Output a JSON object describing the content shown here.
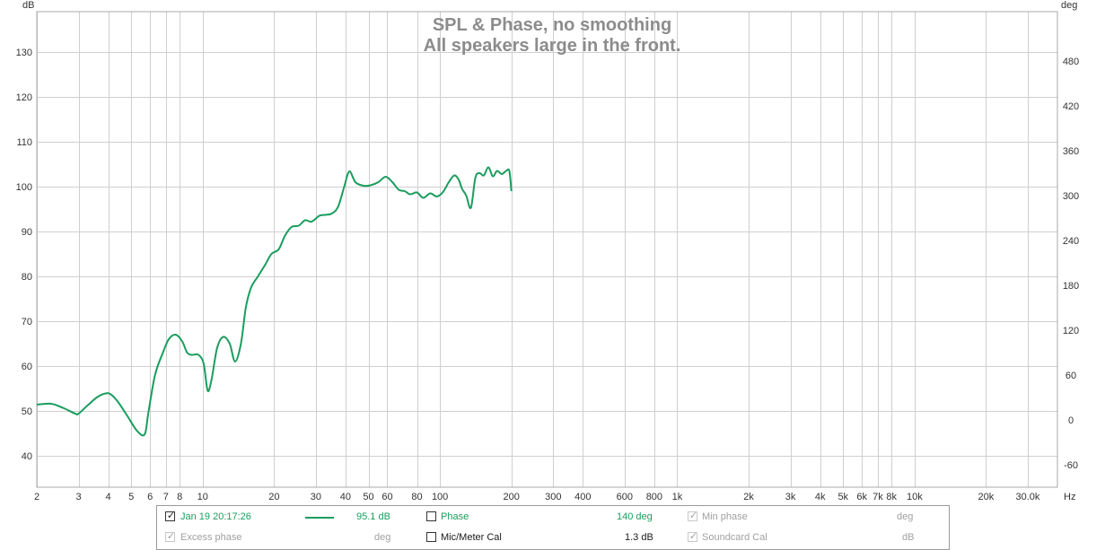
{
  "chart_data": {
    "type": "line",
    "title": "SPL & Phase, no smoothing",
    "subtitle": "All speakers large in the front.",
    "xlabel": "Hz",
    "ylabel": "dB",
    "y2label": "deg",
    "xscale": "log",
    "xlim": [
      2,
      40000
    ],
    "ylim": [
      33,
      139
    ],
    "y2lim": [
      -90,
      546
    ],
    "grid": true,
    "x_ticks": [
      {
        "v": 2,
        "t": "2"
      },
      {
        "v": 3,
        "t": "3"
      },
      {
        "v": 4,
        "t": "4"
      },
      {
        "v": 5,
        "t": "5"
      },
      {
        "v": 6,
        "t": "6"
      },
      {
        "v": 7,
        "t": "7"
      },
      {
        "v": 8,
        "t": "8"
      },
      {
        "v": 10,
        "t": "10"
      },
      {
        "v": 20,
        "t": "20"
      },
      {
        "v": 30,
        "t": "30"
      },
      {
        "v": 40,
        "t": "40"
      },
      {
        "v": 50,
        "t": "50"
      },
      {
        "v": 60,
        "t": "60"
      },
      {
        "v": 80,
        "t": "80"
      },
      {
        "v": 100,
        "t": "100"
      },
      {
        "v": 200,
        "t": "200"
      },
      {
        "v": 300,
        "t": "300"
      },
      {
        "v": 400,
        "t": "400"
      },
      {
        "v": 600,
        "t": "600"
      },
      {
        "v": 800,
        "t": "800"
      },
      {
        "v": 1000,
        "t": "1k"
      },
      {
        "v": 2000,
        "t": "2k"
      },
      {
        "v": 3000,
        "t": "3k"
      },
      {
        "v": 4000,
        "t": "4k"
      },
      {
        "v": 5000,
        "t": "5k"
      },
      {
        "v": 6000,
        "t": "6k"
      },
      {
        "v": 7000,
        "t": "7k"
      },
      {
        "v": 8000,
        "t": "8k"
      },
      {
        "v": 10000,
        "t": "10k"
      },
      {
        "v": 20000,
        "t": "20k"
      },
      {
        "v": 30000,
        "t": "30.0k"
      }
    ],
    "y_ticks": [
      40,
      50,
      60,
      70,
      80,
      90,
      100,
      110,
      120,
      130
    ],
    "y2_ticks": [
      -60,
      0,
      60,
      120,
      180,
      240,
      300,
      360,
      420,
      480
    ],
    "series": [
      {
        "color": "#1a9d5e",
        "x": [
          2.0,
          2.3,
          2.6,
          2.9,
          3.0,
          3.3,
          3.6,
          3.9,
          4.1,
          4.4,
          4.8,
          5.3,
          5.7,
          5.9,
          6.3,
          6.8,
          7.2,
          7.7,
          8.2,
          8.6,
          9.0,
          9.6,
          10.1,
          10.5,
          10.9,
          11.5,
          12.2,
          13.0,
          13.7,
          14.5,
          15.2,
          16.0,
          17.1,
          18.3,
          19.5,
          20.9,
          22.2,
          23.7,
          25.4,
          27.0,
          28.8,
          31.0,
          32.8,
          35.0,
          37.2,
          39.5,
          41.5,
          44.0,
          47.5,
          51.0,
          55.0,
          59.0,
          63.0,
          67.0,
          71.0,
          75.0,
          80.0,
          85.0,
          91.0,
          97.0,
          103.0,
          109.0,
          115.0,
          120.0,
          124.0,
          129.0,
          135.0,
          141.0,
          147.0,
          153.0,
          160.0,
          167.0,
          174.0,
          182.0,
          190.0,
          196.0,
          200.0
        ],
        "values": [
          51.4,
          51.6,
          50.6,
          49.4,
          49.4,
          51.4,
          53.1,
          53.9,
          53.7,
          52.0,
          49.0,
          45.5,
          44.8,
          49.5,
          58.0,
          63.0,
          66.0,
          67.0,
          65.5,
          63.0,
          62.5,
          62.5,
          60.5,
          54.5,
          57.0,
          64.0,
          66.5,
          65.0,
          61.0,
          65.0,
          73.0,
          77.5,
          80.0,
          82.5,
          85.0,
          86.0,
          89.0,
          91.0,
          91.3,
          92.5,
          92.2,
          93.5,
          93.7,
          94.0,
          95.5,
          100.0,
          103.4,
          101.0,
          100.2,
          100.3,
          101.0,
          102.2,
          101.0,
          99.3,
          99.0,
          98.3,
          98.7,
          97.5,
          98.5,
          97.8,
          98.8,
          101.0,
          102.5,
          101.5,
          99.5,
          98.0,
          95.3,
          102.0,
          103.0,
          102.5,
          104.3,
          102.3,
          103.5,
          102.8,
          103.5,
          103.5,
          99.0
        ]
      }
    ]
  },
  "legend": {
    "row1": {
      "measurement_label": "Jan 19 20:17:26",
      "measurement_value": "95.1 dB",
      "phase_label": "Phase",
      "phase_value": "140 deg",
      "minphase_label": "Min phase",
      "minphase_value": "deg"
    },
    "row2": {
      "excess_label": "Excess phase",
      "excess_value": "deg",
      "mic_label": "Mic/Meter Cal",
      "mic_value": "1.3 dB",
      "soundcard_label": "Soundcard Cal",
      "soundcard_value": "dB"
    },
    "colors": {
      "trace": "#1a9d5e",
      "disabled": "#a0a0a0"
    }
  }
}
